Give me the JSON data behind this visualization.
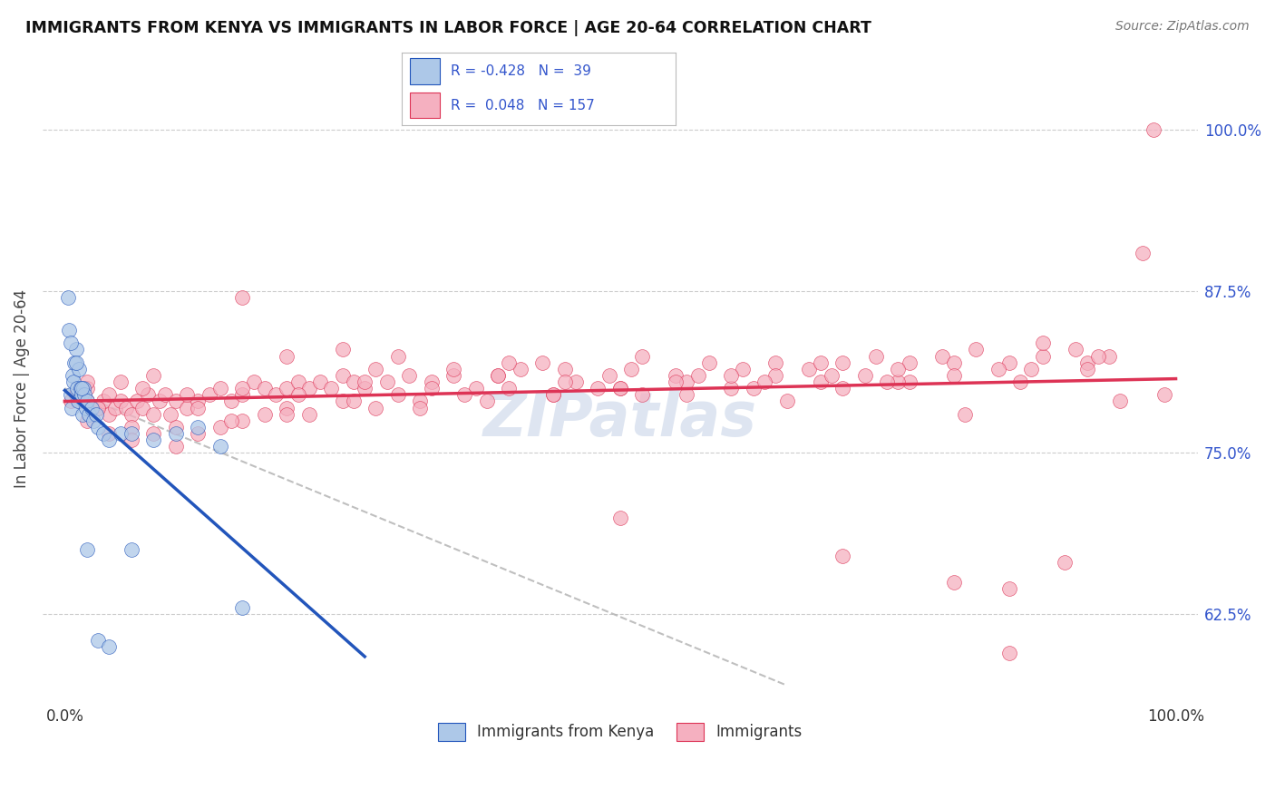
{
  "title": "IMMIGRANTS FROM KENYA VS IMMIGRANTS IN LABOR FORCE | AGE 20-64 CORRELATION CHART",
  "source_text": "Source: ZipAtlas.com",
  "ylabel": "In Labor Force | Age 20-64",
  "legend_label1": "Immigrants from Kenya",
  "legend_label2": "Immigrants",
  "R1": -0.428,
  "N1": 39,
  "R2": 0.048,
  "N2": 157,
  "color1": "#adc8e8",
  "color2": "#f5b0c0",
  "trendline1_color": "#2255bb",
  "trendline2_color": "#dd3355",
  "xlim": [
    -2.0,
    102.0
  ],
  "ylim": [
    56.0,
    104.0
  ],
  "right_yticks": [
    62.5,
    75.0,
    87.5,
    100.0
  ],
  "background_color": "#ffffff",
  "blue_x": [
    0.5,
    0.6,
    0.7,
    0.8,
    0.9,
    1.0,
    1.1,
    1.2,
    1.3,
    1.4,
    1.5,
    1.6,
    1.7,
    1.8,
    1.9,
    2.0,
    2.2,
    2.4,
    2.6,
    2.8,
    3.0,
    3.5,
    4.0,
    5.0,
    6.0,
    8.0,
    10.0,
    12.0,
    14.0,
    16.0,
    0.3,
    0.4,
    0.5,
    1.0,
    1.5,
    2.0,
    3.0,
    4.0,
    6.0
  ],
  "blue_y": [
    79.5,
    78.5,
    81.0,
    80.5,
    82.0,
    83.0,
    80.0,
    79.0,
    81.5,
    80.0,
    79.5,
    78.0,
    80.0,
    79.5,
    78.5,
    79.0,
    78.0,
    78.5,
    77.5,
    78.0,
    77.0,
    76.5,
    76.0,
    76.5,
    76.5,
    76.0,
    76.5,
    77.0,
    75.5,
    63.0,
    87.0,
    84.5,
    83.5,
    82.0,
    80.0,
    67.5,
    60.5,
    60.0,
    67.5
  ],
  "pink_x": [
    0.5,
    1.0,
    1.2,
    1.5,
    2.0,
    2.5,
    3.0,
    3.5,
    4.0,
    4.5,
    5.0,
    5.5,
    6.0,
    6.5,
    7.0,
    7.5,
    8.0,
    8.5,
    9.0,
    9.5,
    10.0,
    11.0,
    12.0,
    13.0,
    14.0,
    15.0,
    16.0,
    17.0,
    18.0,
    19.0,
    20.0,
    21.0,
    22.0,
    23.0,
    24.0,
    25.0,
    26.0,
    27.0,
    28.0,
    29.0,
    30.0,
    31.0,
    33.0,
    35.0,
    37.0,
    39.0,
    41.0,
    43.0,
    46.0,
    49.0,
    52.0,
    55.0,
    58.0,
    61.0,
    64.0,
    67.0,
    70.0,
    73.0,
    76.0,
    79.0,
    82.0,
    85.0,
    88.0,
    91.0,
    94.0,
    97.0,
    2.0,
    4.0,
    6.0,
    8.0,
    10.0,
    12.0,
    14.0,
    16.0,
    18.0,
    20.0,
    22.0,
    25.0,
    28.0,
    32.0,
    36.0,
    40.0,
    44.0,
    48.0,
    52.0,
    56.0,
    60.0,
    64.0,
    68.0,
    72.0,
    76.0,
    80.0,
    84.0,
    88.0,
    92.0,
    2.0,
    5.0,
    8.0,
    12.0,
    16.0,
    20.0,
    25.0,
    30.0,
    35.0,
    40.0,
    45.0,
    50.0,
    55.0,
    60.0,
    65.0,
    70.0,
    75.0,
    80.0,
    85.0,
    90.0,
    95.0,
    1.0,
    3.0,
    6.0,
    10.0,
    15.0,
    20.0,
    26.0,
    32.0,
    38.0,
    44.0,
    50.0,
    56.0,
    62.0,
    68.0,
    74.0,
    80.0,
    86.0,
    92.0,
    98.0,
    2.0,
    4.0,
    7.0,
    11.0,
    16.0,
    21.0,
    27.0,
    33.0,
    39.0,
    45.0,
    51.0,
    57.0,
    63.0,
    69.0,
    75.0,
    81.0,
    87.0,
    93.0,
    99.0,
    50.0,
    70.0,
    85.0
  ],
  "pink_y": [
    79.0,
    79.5,
    79.0,
    79.5,
    79.0,
    78.5,
    78.5,
    79.0,
    78.0,
    78.5,
    79.0,
    78.5,
    78.0,
    79.0,
    78.5,
    79.5,
    78.0,
    79.0,
    79.5,
    78.0,
    79.0,
    78.5,
    79.0,
    79.5,
    80.0,
    79.0,
    79.5,
    80.5,
    80.0,
    79.5,
    80.0,
    80.5,
    80.0,
    80.5,
    80.0,
    81.0,
    80.5,
    80.0,
    81.5,
    80.5,
    79.5,
    81.0,
    80.5,
    81.0,
    80.0,
    81.0,
    81.5,
    82.0,
    80.5,
    81.0,
    82.5,
    81.0,
    82.0,
    81.5,
    82.0,
    81.5,
    82.0,
    82.5,
    82.0,
    82.5,
    83.0,
    82.0,
    82.5,
    83.0,
    82.5,
    90.5,
    77.5,
    76.5,
    77.0,
    76.5,
    77.0,
    76.5,
    77.0,
    77.5,
    78.0,
    78.5,
    78.0,
    79.0,
    78.5,
    79.0,
    79.5,
    80.0,
    79.5,
    80.0,
    79.5,
    80.5,
    80.0,
    81.0,
    80.5,
    81.0,
    80.5,
    82.0,
    81.5,
    83.5,
    82.0,
    80.0,
    80.5,
    81.0,
    78.5,
    87.0,
    82.5,
    83.0,
    82.5,
    81.5,
    82.0,
    81.5,
    80.0,
    80.5,
    81.0,
    79.0,
    80.0,
    80.5,
    65.0,
    64.5,
    66.5,
    79.0,
    79.5,
    78.5,
    76.0,
    75.5,
    77.5,
    78.0,
    79.0,
    78.5,
    79.0,
    79.5,
    80.0,
    79.5,
    80.0,
    82.0,
    80.5,
    81.0,
    80.5,
    81.5,
    100.0,
    80.5,
    79.5,
    80.0,
    79.5,
    80.0,
    79.5,
    80.5,
    80.0,
    81.0,
    80.5,
    81.5,
    81.0,
    80.5,
    81.0,
    81.5,
    78.0,
    81.5,
    82.5,
    79.5,
    70.0,
    67.0,
    59.5
  ]
}
